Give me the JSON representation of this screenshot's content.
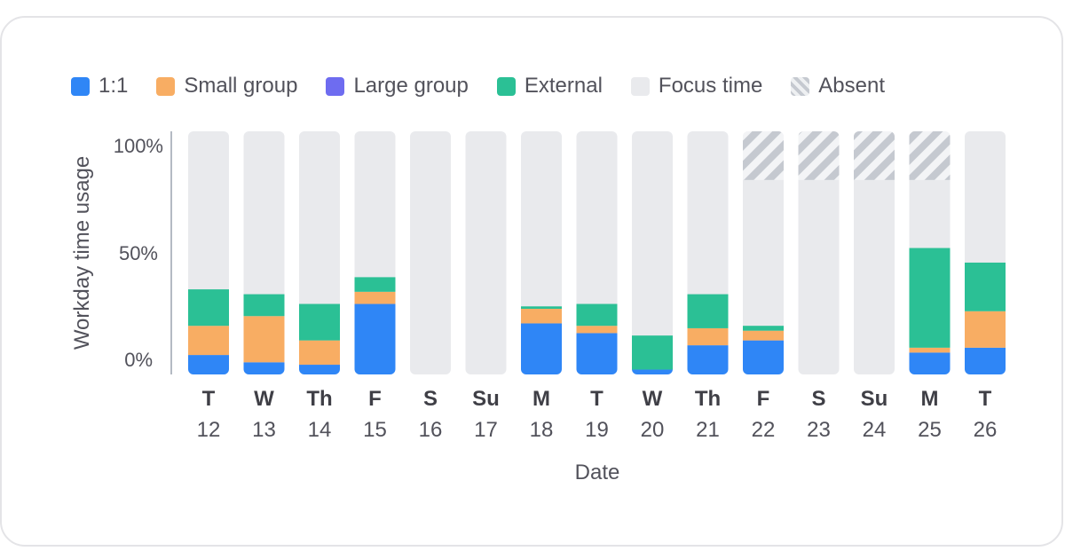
{
  "legend": [
    {
      "key": "one_on_one",
      "label": "1:1",
      "color": "#2f86f6"
    },
    {
      "key": "small_group",
      "label": "Small group",
      "color": "#f8ad63"
    },
    {
      "key": "large_group",
      "label": "Large group",
      "color": "#6e6cf0"
    },
    {
      "key": "external",
      "label": "External",
      "color": "#2bc095"
    },
    {
      "key": "focus",
      "label": "Focus time",
      "color": "#e9eaed"
    },
    {
      "key": "absent",
      "label": "Absent",
      "color": "#c5c9d0"
    }
  ],
  "chart_data": {
    "type": "bar",
    "stacked": true,
    "xlabel": "Date",
    "ylabel": "Workday time usage",
    "ylim": [
      0,
      100
    ],
    "yticks": [
      "0%",
      "50%",
      "100%"
    ],
    "categories": [
      {
        "day": "T",
        "date": "12"
      },
      {
        "day": "W",
        "date": "13"
      },
      {
        "day": "Th",
        "date": "14"
      },
      {
        "day": "F",
        "date": "15"
      },
      {
        "day": "S",
        "date": "16"
      },
      {
        "day": "Su",
        "date": "17"
      },
      {
        "day": "M",
        "date": "18"
      },
      {
        "day": "T",
        "date": "19"
      },
      {
        "day": "W",
        "date": "20"
      },
      {
        "day": "Th",
        "date": "21"
      },
      {
        "day": "F",
        "date": "22"
      },
      {
        "day": "S",
        "date": "23"
      },
      {
        "day": "Su",
        "date": "24"
      },
      {
        "day": "M",
        "date": "25"
      },
      {
        "day": "T",
        "date": "26"
      }
    ],
    "series": [
      {
        "name": "1:1",
        "key": "one_on_one",
        "values": [
          8,
          5,
          4,
          29,
          0,
          0,
          21,
          17,
          2,
          12,
          14,
          0,
          0,
          9,
          11
        ]
      },
      {
        "name": "Small group",
        "key": "small_group",
        "values": [
          12,
          19,
          10,
          5,
          0,
          0,
          6,
          3,
          0,
          7,
          4,
          0,
          0,
          2,
          15
        ]
      },
      {
        "name": "Large group",
        "key": "large_group",
        "values": [
          0,
          0,
          0,
          0,
          0,
          0,
          0,
          0,
          0,
          0,
          0,
          0,
          0,
          0,
          0
        ]
      },
      {
        "name": "External",
        "key": "external",
        "values": [
          15,
          9,
          15,
          6,
          0,
          0,
          1,
          9,
          14,
          14,
          2,
          0,
          0,
          41,
          20
        ]
      },
      {
        "name": "Absent",
        "key": "absent",
        "values": [
          0,
          0,
          0,
          0,
          0,
          0,
          0,
          0,
          0,
          0,
          20,
          20,
          20,
          20,
          0
        ]
      },
      {
        "name": "Focus time",
        "key": "focus",
        "values": [
          65,
          67,
          71,
          60,
          100,
          100,
          72,
          71,
          84,
          67,
          60,
          80,
          80,
          28,
          54
        ]
      }
    ]
  }
}
